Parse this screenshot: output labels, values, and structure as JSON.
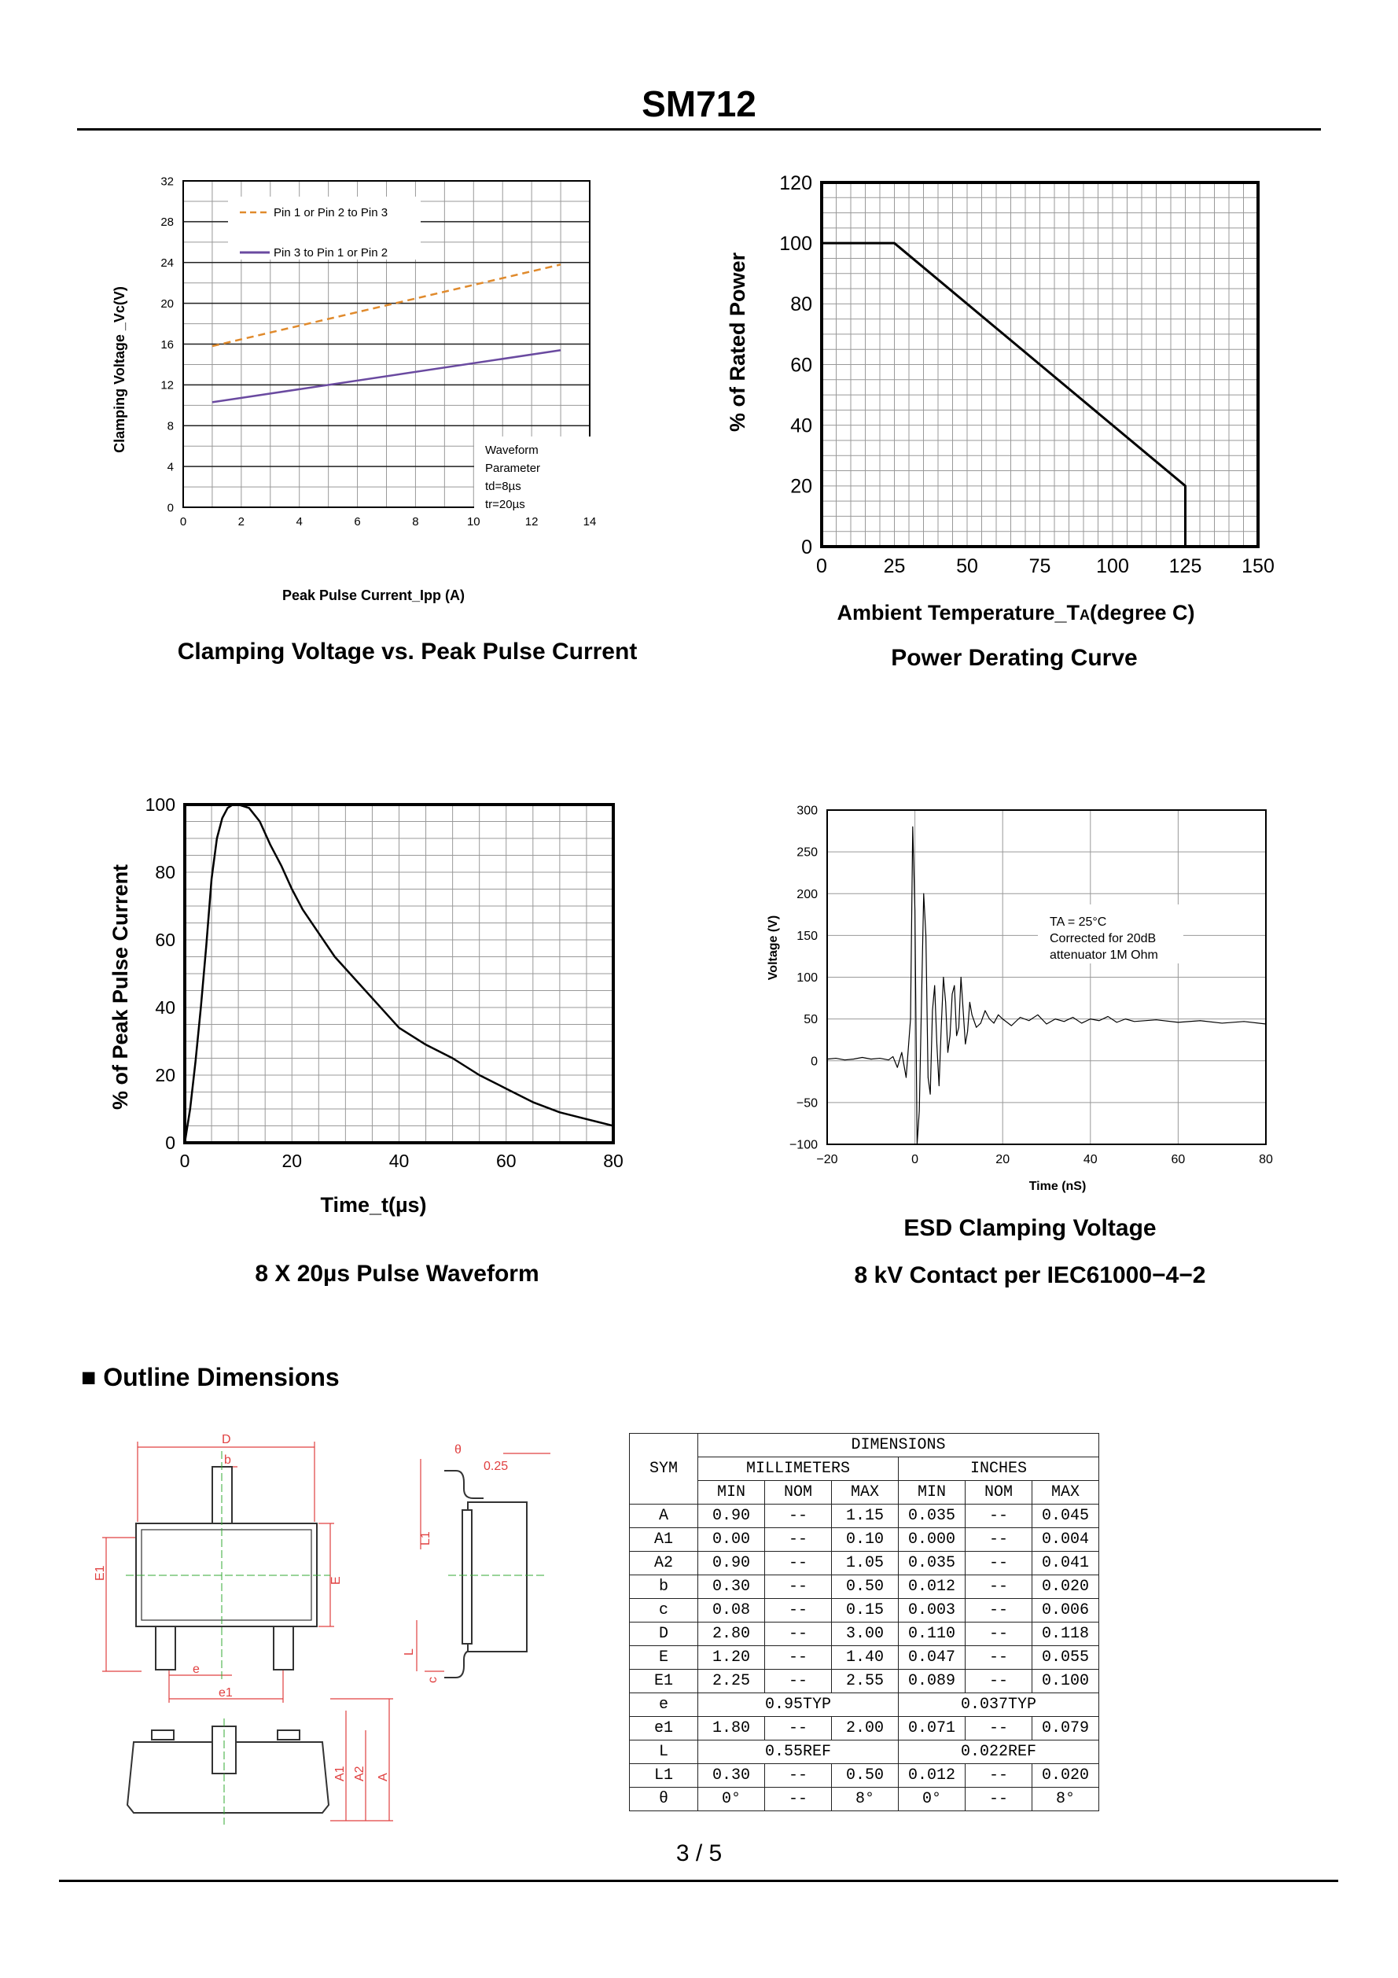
{
  "header": {
    "title": "SM712"
  },
  "charts": {
    "clamp": {
      "caption": "Clamping Voltage vs. Peak Pulse Current",
      "chart_data": {
        "type": "line",
        "title": "Clamping Voltage vs. Peak Pulse Current",
        "xlabel": "Peak Pulse Current_Ipp (A)",
        "ylabel": "Clamping Voltage _Vc(V)",
        "xlim": [
          0,
          14
        ],
        "ylim": [
          0,
          32
        ],
        "xticks": [
          "0",
          "2",
          "4",
          "6",
          "8",
          "10",
          "12",
          "14"
        ],
        "yticks": [
          "0",
          "4",
          "8",
          "12",
          "16",
          "20",
          "24",
          "28",
          "32"
        ],
        "series": [
          {
            "name": "Pin 1 or Pin 2 to Pin 3",
            "color": "#e08a2c",
            "dashed": true,
            "x": [
              1,
              13
            ],
            "y": [
              15.8,
              23.8
            ]
          },
          {
            "name": "Pin 3 to Pin 1 or Pin 2",
            "color": "#6a4aa0",
            "dashed": false,
            "x": [
              1,
              13
            ],
            "y": [
              10.3,
              15.4
            ]
          }
        ],
        "annotation": [
          "Waveform",
          "Parameter",
          "td=8µs",
          "tr=20µs"
        ]
      }
    },
    "derating": {
      "caption": "Power Derating Curve",
      "chart_data": {
        "type": "line",
        "title": "Power Derating Curve",
        "xlabel_main": "Ambient  Temperature_T",
        "xlabel_sub": "A",
        "xlabel_end": "(degree C)",
        "ylabel": "% of Rated Power",
        "xlim": [
          0,
          150
        ],
        "ylim": [
          0,
          120
        ],
        "xticks": [
          "0",
          "25",
          "50",
          "75",
          "100",
          "125",
          "150"
        ],
        "yticks": [
          "0",
          "20",
          "40",
          "60",
          "80",
          "100",
          "120"
        ],
        "series": [
          {
            "name": "Derating",
            "x": [
              0,
              25,
              125,
              125
            ],
            "y": [
              100,
              100,
              20,
              0
            ]
          }
        ]
      }
    },
    "pulse": {
      "caption": "8 X 20µs Pulse Waveform",
      "chart_data": {
        "type": "line",
        "title": "8 X 20µs Pulse Waveform",
        "xlabel": "Time_t(µs)",
        "ylabel": "% of Peak Pulse Current",
        "xlim": [
          0,
          80
        ],
        "ylim": [
          0,
          100
        ],
        "xticks": [
          "0",
          "20",
          "40",
          "60",
          "80"
        ],
        "yticks": [
          "0",
          "20",
          "40",
          "60",
          "80",
          "100"
        ],
        "series": [
          {
            "name": "Pulse",
            "x": [
              0,
              1,
              2,
              3,
              4,
              5,
              6,
              7,
              8,
              9,
              10,
              12,
              14,
              16,
              18,
              20,
              22,
              25,
              28,
              32,
              36,
              40,
              45,
              50,
              55,
              60,
              65,
              70,
              75,
              80
            ],
            "y": [
              0,
              10,
              24,
              40,
              58,
              78,
              90,
              96,
              99,
              100,
              100,
              99,
              95,
              88,
              82,
              75,
              69,
              62,
              55,
              48,
              41,
              34,
              29,
              25,
              20,
              16,
              12,
              9,
              7,
              5
            ]
          }
        ]
      }
    },
    "esd": {
      "caption1": "ESD Clamping Voltage",
      "caption2": "8 kV Contact per IEC61000−4−2",
      "chart_data": {
        "type": "line",
        "title": "ESD Clamping Voltage",
        "xlabel": "Time (nS)",
        "ylabel": "Voltage (V)",
        "xlim": [
          -20,
          80
        ],
        "ylim": [
          -100,
          300
        ],
        "xticks": [
          "−20",
          "0",
          "20",
          "40",
          "60",
          "80"
        ],
        "yticks": [
          "−100",
          "−50",
          "0",
          "50",
          "100",
          "150",
          "200",
          "250",
          "300"
        ],
        "annotation": [
          "TA = 25°C",
          "Corrected for 20dB",
          "attenuator 1M Ohm"
        ],
        "series": [
          {
            "name": "ESD",
            "x": [
              -20,
              -18,
              -16,
              -14,
              -12,
              -10,
              -8,
              -6,
              -5,
              -4,
              -3,
              -2,
              -1.5,
              -1,
              -0.5,
              0,
              0.5,
              1,
              1.5,
              2,
              2.5,
              3,
              3.5,
              4,
              4.5,
              5,
              5.5,
              6,
              6.5,
              7,
              7.5,
              8,
              8.5,
              9,
              9.5,
              10,
              10.5,
              11,
              11.5,
              12,
              12.5,
              13,
              14,
              15,
              16,
              17,
              18,
              19,
              20,
              22,
              24,
              26,
              28,
              30,
              32,
              34,
              36,
              38,
              40,
              42,
              44,
              46,
              48,
              50,
              55,
              60,
              65,
              70,
              75,
              80
            ],
            "y": [
              2,
              3,
              1,
              2,
              4,
              2,
              3,
              1,
              5,
              -8,
              10,
              -20,
              15,
              50,
              280,
              180,
              -100,
              -60,
              70,
              200,
              150,
              -20,
              -40,
              60,
              90,
              20,
              -30,
              40,
              100,
              70,
              10,
              30,
              80,
              90,
              30,
              40,
              100,
              60,
              20,
              35,
              70,
              55,
              40,
              45,
              60,
              50,
              45,
              55,
              50,
              42,
              52,
              48,
              55,
              44,
              50,
              47,
              52,
              45,
              50,
              48,
              53,
              46,
              50,
              47,
              49,
              46,
              48,
              45,
              47,
              44
            ]
          }
        ]
      }
    }
  },
  "outline": {
    "heading": "■ Outline Dimensions",
    "drawing_labels": {
      "D": "D",
      "b": "b",
      "E1": "E1",
      "E": "E",
      "e": "e",
      "e1": "e1",
      "theta": "θ",
      "lead_thickness": "0.25",
      "L1": "L1",
      "L": "L",
      "c": "c",
      "A1": "A1",
      "A2": "A2",
      "A": "A"
    },
    "table": {
      "header_top": "DIMENSIONS",
      "sym": "SYM",
      "mm": "MILLIMETERS",
      "inches": "INCHES",
      "sub": [
        "MIN",
        "NOM",
        "MAX",
        "MIN",
        "NOM",
        "MAX"
      ],
      "rows": [
        {
          "sym": "A",
          "vals": [
            "0.90",
            "--",
            "1.15",
            "0.035",
            "--",
            "0.045"
          ]
        },
        {
          "sym": "A1",
          "vals": [
            "0.00",
            "--",
            "0.10",
            "0.000",
            "--",
            "0.004"
          ]
        },
        {
          "sym": "A2",
          "vals": [
            "0.90",
            "--",
            "1.05",
            "0.035",
            "--",
            "0.041"
          ]
        },
        {
          "sym": "b",
          "vals": [
            "0.30",
            "--",
            "0.50",
            "0.012",
            "--",
            "0.020"
          ]
        },
        {
          "sym": "c",
          "vals": [
            "0.08",
            "--",
            "0.15",
            "0.003",
            "--",
            "0.006"
          ]
        },
        {
          "sym": "D",
          "vals": [
            "2.80",
            "--",
            "3.00",
            "0.110",
            "--",
            "0.118"
          ]
        },
        {
          "sym": "E",
          "vals": [
            "1.20",
            "--",
            "1.40",
            "0.047",
            "--",
            "0.055"
          ]
        },
        {
          "sym": "E1",
          "vals": [
            "2.25",
            "--",
            "2.55",
            "0.089",
            "--",
            "0.100"
          ]
        },
        {
          "sym": "e",
          "mm_span": "0.95TYP",
          "in_span": "0.037TYP"
        },
        {
          "sym": "e1",
          "vals": [
            "1.80",
            "--",
            "2.00",
            "0.071",
            "--",
            "0.079"
          ]
        },
        {
          "sym": "L",
          "mm_span": "0.55REF",
          "in_span": "0.022REF"
        },
        {
          "sym": "L1",
          "vals": [
            "0.30",
            "--",
            "0.50",
            "0.012",
            "--",
            "0.020"
          ]
        },
        {
          "sym": "θ",
          "vals": [
            "0°",
            "--",
            "8°",
            "0°",
            "--",
            "8°"
          ]
        }
      ]
    }
  },
  "footer": {
    "page": "3 / 5"
  }
}
